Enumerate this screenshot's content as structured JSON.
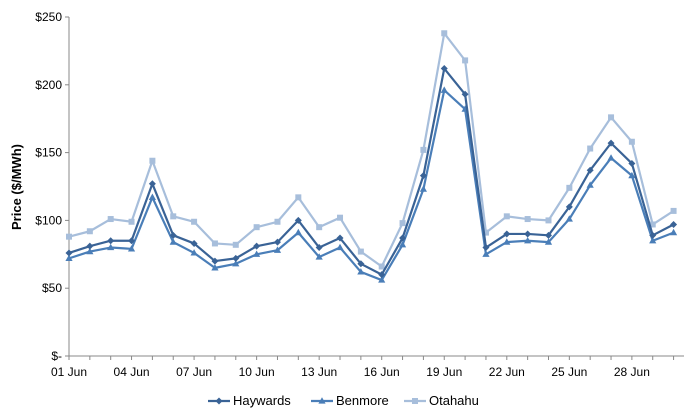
{
  "chart_data": {
    "type": "line",
    "ylabel": "Price ($/MWh)",
    "ylim": [
      0,
      250
    ],
    "y_ticks": [
      {
        "value": 0,
        "label": "$-"
      },
      {
        "value": 50,
        "label": "$50"
      },
      {
        "value": 100,
        "label": "$100"
      },
      {
        "value": 150,
        "label": "$150"
      },
      {
        "value": 200,
        "label": "$200"
      },
      {
        "value": 250,
        "label": "$250"
      }
    ],
    "x_tick_labels": [
      "01 Jun",
      "04 Jun",
      "07 Jun",
      "10 Jun",
      "13 Jun",
      "16 Jun",
      "19 Jun",
      "22 Jun",
      "25 Jun",
      "28 Jun"
    ],
    "x_tick_days": [
      1,
      4,
      7,
      10,
      13,
      16,
      19,
      22,
      25,
      28
    ],
    "x_days": [
      1,
      2,
      3,
      4,
      5,
      6,
      7,
      8,
      9,
      10,
      11,
      12,
      13,
      14,
      15,
      16,
      17,
      18,
      19,
      20,
      21,
      22,
      23,
      24,
      25,
      26,
      27,
      28,
      29,
      30
    ],
    "x_range": [
      1,
      30.5
    ],
    "grid": false,
    "legend_position": "bottom",
    "series": [
      {
        "name": "Haywards",
        "color": "#3a6396",
        "marker": "diamond",
        "values": [
          76,
          81,
          85,
          85,
          127,
          89,
          83,
          70,
          72,
          81,
          84,
          100,
          80,
          87,
          68,
          60,
          87,
          133,
          212,
          193,
          80,
          90,
          90,
          89,
          110,
          137,
          157,
          142,
          89,
          97
        ]
      },
      {
        "name": "Benmore",
        "color": "#4a7eb8",
        "marker": "triangle",
        "values": [
          72,
          77,
          80,
          79,
          117,
          84,
          76,
          65,
          68,
          75,
          78,
          91,
          73,
          80,
          62,
          56,
          82,
          123,
          196,
          182,
          75,
          84,
          85,
          84,
          101,
          126,
          146,
          133,
          85,
          91
        ]
      },
      {
        "name": "Otahahu",
        "color": "#a7bedb",
        "marker": "square",
        "values": [
          88,
          92,
          101,
          99,
          144,
          103,
          99,
          83,
          82,
          95,
          99,
          117,
          95,
          102,
          77,
          66,
          98,
          152,
          238,
          218,
          91,
          103,
          101,
          100,
          124,
          153,
          176,
          158,
          97,
          107
        ]
      }
    ]
  }
}
